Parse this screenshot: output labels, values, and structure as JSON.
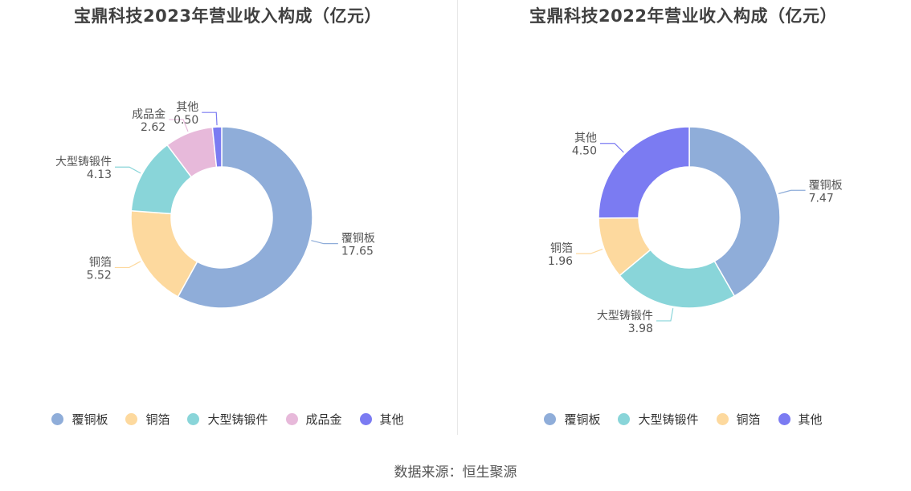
{
  "colors": {
    "覆铜板": "#8fadd9",
    "铜箔": "#fdd99e",
    "大型铸锻件": "#89d5d9",
    "成品金": "#e7b9da",
    "其他": "#7b7bf2"
  },
  "source": "数据来源：恒生聚源",
  "chart_data": [
    {
      "type": "pie",
      "donut": true,
      "title": "宝鼎科技2023年营业收入构成（亿元）",
      "categories": [
        "覆铜板",
        "铜箔",
        "大型铸锻件",
        "成品金",
        "其他"
      ],
      "values": [
        17.65,
        5.52,
        4.13,
        2.62,
        0.5
      ],
      "value_labels": [
        "17.65",
        "5.52",
        "4.13",
        "2.62",
        "0.50"
      ],
      "legend": [
        "覆铜板",
        "铜箔",
        "大型铸锻件",
        "成品金",
        "其他"
      ],
      "legend_position": "bottom"
    },
    {
      "type": "pie",
      "donut": true,
      "title": "宝鼎科技2022年营业收入构成（亿元）",
      "categories": [
        "覆铜板",
        "大型铸锻件",
        "铜箔",
        "其他"
      ],
      "values": [
        7.47,
        3.98,
        1.96,
        4.5
      ],
      "value_labels": [
        "7.47",
        "3.98",
        "1.96",
        "4.50"
      ],
      "legend": [
        "覆铜板",
        "大型铸锻件",
        "铜箔",
        "其他"
      ],
      "legend_position": "bottom"
    }
  ]
}
